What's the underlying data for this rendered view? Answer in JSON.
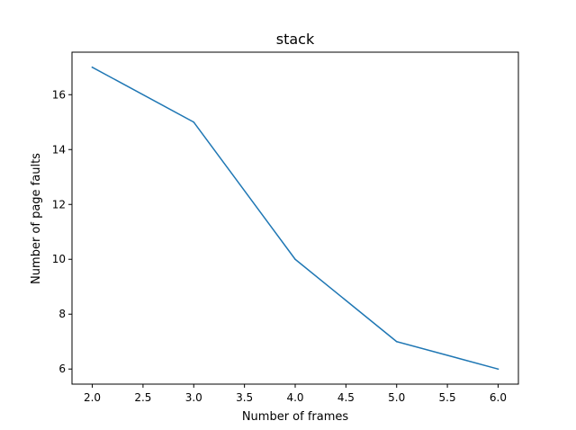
{
  "chart_data": {
    "type": "line",
    "title": "stack",
    "xlabel": "Number of frames",
    "ylabel": "Number of page faults",
    "x": [
      2,
      3,
      4,
      5,
      6
    ],
    "series": [
      {
        "values": [
          17,
          15,
          10,
          7,
          6
        ],
        "color": "#1f77b4"
      }
    ],
    "xlim": [
      1.8,
      6.2
    ],
    "ylim": [
      5.45,
      17.55
    ],
    "xticks": [
      "2.0",
      "2.5",
      "3.0",
      "3.5",
      "4.0",
      "4.5",
      "5.0",
      "5.5",
      "6.0"
    ],
    "yticks": [
      "6",
      "8",
      "10",
      "12",
      "14",
      "16"
    ],
    "grid": false,
    "legend": "none"
  }
}
